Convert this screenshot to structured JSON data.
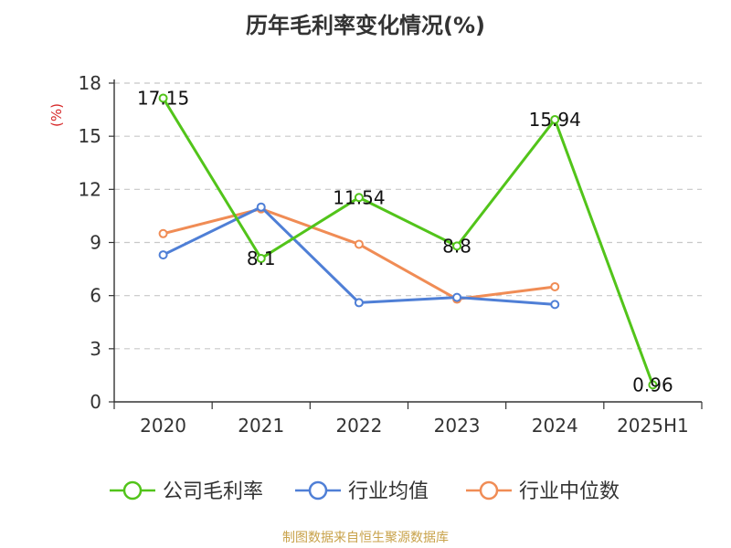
{
  "title": "历年毛利率变化情况(%)",
  "source": "制图数据来自恒生聚源数据库",
  "chart_data": {
    "type": "line",
    "title": "历年毛利率变化情况(%)",
    "xlabel": "",
    "ylabel": "(%)",
    "categories": [
      "2020",
      "2021",
      "2022",
      "2023",
      "2024",
      "2025H1"
    ],
    "ylim": [
      0,
      18
    ],
    "yticks": [
      0,
      3,
      6,
      9,
      12,
      15,
      18
    ],
    "grid": true,
    "legend_position": "bottom",
    "series": [
      {
        "name": "公司毛利率",
        "color": "#52c41a",
        "show_labels": true,
        "values": [
          17.15,
          8.1,
          11.54,
          8.8,
          15.94,
          0.96
        ]
      },
      {
        "name": "行业均值",
        "color": "#4f7fd6",
        "show_labels": false,
        "values": [
          8.3,
          11.0,
          5.6,
          5.9,
          5.5,
          null
        ]
      },
      {
        "name": "行业中位数",
        "color": "#f08c55",
        "show_labels": false,
        "values": [
          9.5,
          10.9,
          8.9,
          5.8,
          6.5,
          null
        ]
      }
    ]
  }
}
